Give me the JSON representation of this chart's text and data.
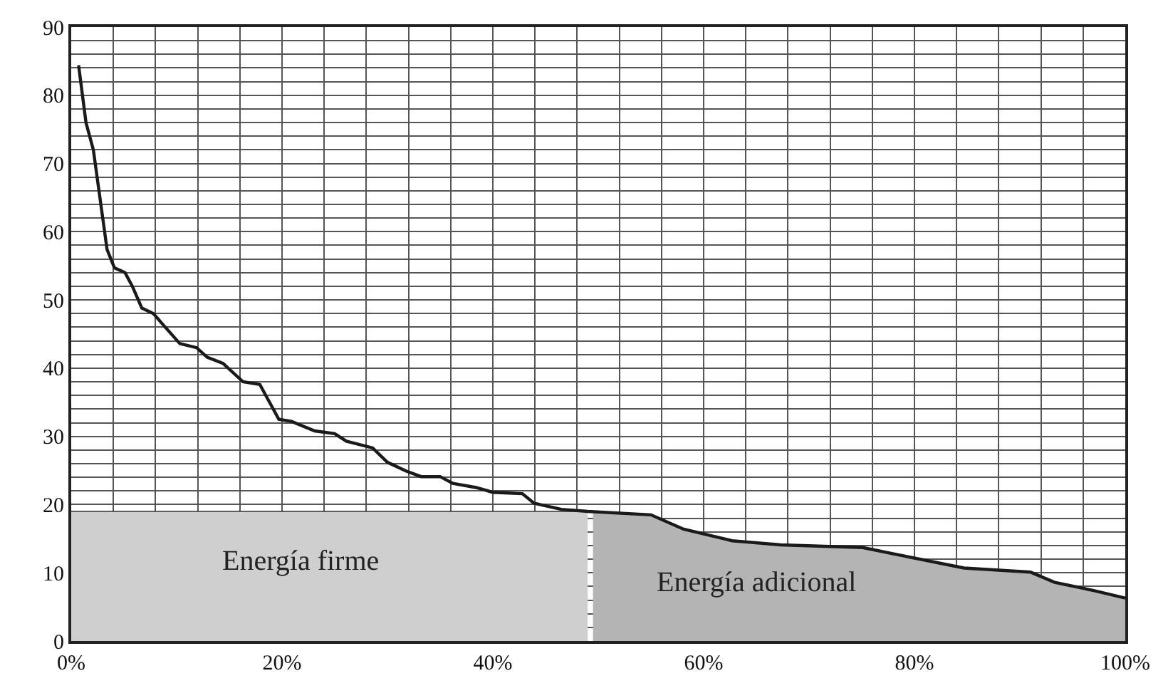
{
  "chart_data": {
    "type": "line",
    "xlim": [
      0,
      100
    ],
    "ylim": [
      0,
      90
    ],
    "xticks": [
      {
        "value": 0,
        "label": "0%"
      },
      {
        "value": 4,
        "label": null
      },
      {
        "value": 8,
        "label": null
      },
      {
        "value": 12,
        "label": null
      },
      {
        "value": 16,
        "label": null
      },
      {
        "value": 20,
        "label": "20%"
      },
      {
        "value": 24,
        "label": null
      },
      {
        "value": 28,
        "label": null
      },
      {
        "value": 32,
        "label": null
      },
      {
        "value": 36,
        "label": null
      },
      {
        "value": 40,
        "label": "40%"
      },
      {
        "value": 44,
        "label": null
      },
      {
        "value": 48,
        "label": null
      },
      {
        "value": 52,
        "label": null
      },
      {
        "value": 56,
        "label": null
      },
      {
        "value": 60,
        "label": "60%"
      },
      {
        "value": 64,
        "label": null
      },
      {
        "value": 68,
        "label": null
      },
      {
        "value": 72,
        "label": null
      },
      {
        "value": 76,
        "label": null
      },
      {
        "value": 80,
        "label": "80%"
      },
      {
        "value": 84,
        "label": null
      },
      {
        "value": 88,
        "label": null
      },
      {
        "value": 92,
        "label": null
      },
      {
        "value": 96,
        "label": null
      },
      {
        "value": 100,
        "label": "100%"
      }
    ],
    "yticks": [
      0,
      {
        "value": 2,
        "label": null
      },
      {
        "value": 4,
        "label": null
      },
      {
        "value": 6,
        "label": null
      },
      {
        "value": 8,
        "label": null
      },
      10,
      {
        "value": 12,
        "label": null
      },
      {
        "value": 14,
        "label": null
      },
      {
        "value": 16,
        "label": null
      },
      {
        "value": 18,
        "label": null
      },
      20,
      {
        "value": 22,
        "label": null
      },
      {
        "value": 24,
        "label": null
      },
      {
        "value": 26,
        "label": null
      },
      {
        "value": 28,
        "label": null
      },
      30,
      {
        "value": 32,
        "label": null
      },
      {
        "value": 34,
        "label": null
      },
      {
        "value": 36,
        "label": null
      },
      {
        "value": 38,
        "label": null
      },
      40,
      {
        "value": 42,
        "label": null
      },
      {
        "value": 44,
        "label": null
      },
      {
        "value": 46,
        "label": null
      },
      {
        "value": 48,
        "label": null
      },
      50,
      {
        "value": 52,
        "label": null
      },
      {
        "value": 54,
        "label": null
      },
      {
        "value": 56,
        "label": null
      },
      {
        "value": 58,
        "label": null
      },
      60,
      {
        "value": 62,
        "label": null
      },
      {
        "value": 64,
        "label": null
      },
      {
        "value": 66,
        "label": null
      },
      {
        "value": 68,
        "label": null
      },
      70,
      {
        "value": 72,
        "label": null
      },
      {
        "value": 74,
        "label": null
      },
      {
        "value": 76,
        "label": null
      },
      {
        "value": 78,
        "label": null
      },
      80,
      {
        "value": 82,
        "label": null
      },
      {
        "value": 84,
        "label": null
      },
      {
        "value": 86,
        "label": null
      },
      {
        "value": 88,
        "label": null
      },
      90
    ],
    "grid": true,
    "series": [
      {
        "type": "area",
        "color": "#cfcfcf",
        "x": [
          0,
          49
        ],
        "values": [
          19,
          19
        ]
      },
      {
        "type": "area",
        "color": "#b4b4b4",
        "x": [
          49.5,
          55,
          58.1,
          62.7,
          67.3,
          75.1,
          78.6,
          84.7,
          91,
          93.3,
          97,
          100
        ],
        "values": [
          19,
          18.5,
          16.4,
          14.7,
          14.1,
          13.7,
          12.6,
          10.7,
          10.1,
          8.6,
          7.4,
          6.3
        ]
      },
      {
        "color": "#1a1a1a",
        "x": [
          0.7,
          1.4,
          2.1,
          3.4,
          4.1,
          5.1,
          5.8,
          6.7,
          7.8,
          8.7,
          10.3,
          11.9,
          12.9,
          14.4,
          16.3,
          17.9,
          19.7,
          20.9,
          23.1,
          25,
          26.1,
          28.6,
          30,
          31.8,
          33.2,
          35,
          36.2,
          38.4,
          40,
          42.8,
          43.9,
          46.5,
          49,
          55,
          58.1,
          62.7,
          67.3,
          75.1,
          78.6,
          84.7,
          91,
          93.3,
          97,
          100
        ],
        "values": [
          84.4,
          76,
          72,
          57.4,
          54.7,
          54,
          52,
          48.8,
          48,
          46.4,
          43.6,
          43,
          41.6,
          40.7,
          38,
          37.6,
          32.5,
          32.2,
          30.8,
          30.4,
          29.3,
          28.3,
          26.2,
          24.9,
          24.1,
          24.1,
          23.1,
          22.5,
          21.8,
          21.6,
          20.2,
          19.3,
          19,
          18.5,
          16.4,
          14.7,
          14.1,
          13.7,
          12.6,
          10.7,
          10.1,
          8.6,
          7.4,
          6.3
        ]
      }
    ],
    "annotations": [
      "Energía firme",
      "Energía adicional"
    ]
  }
}
